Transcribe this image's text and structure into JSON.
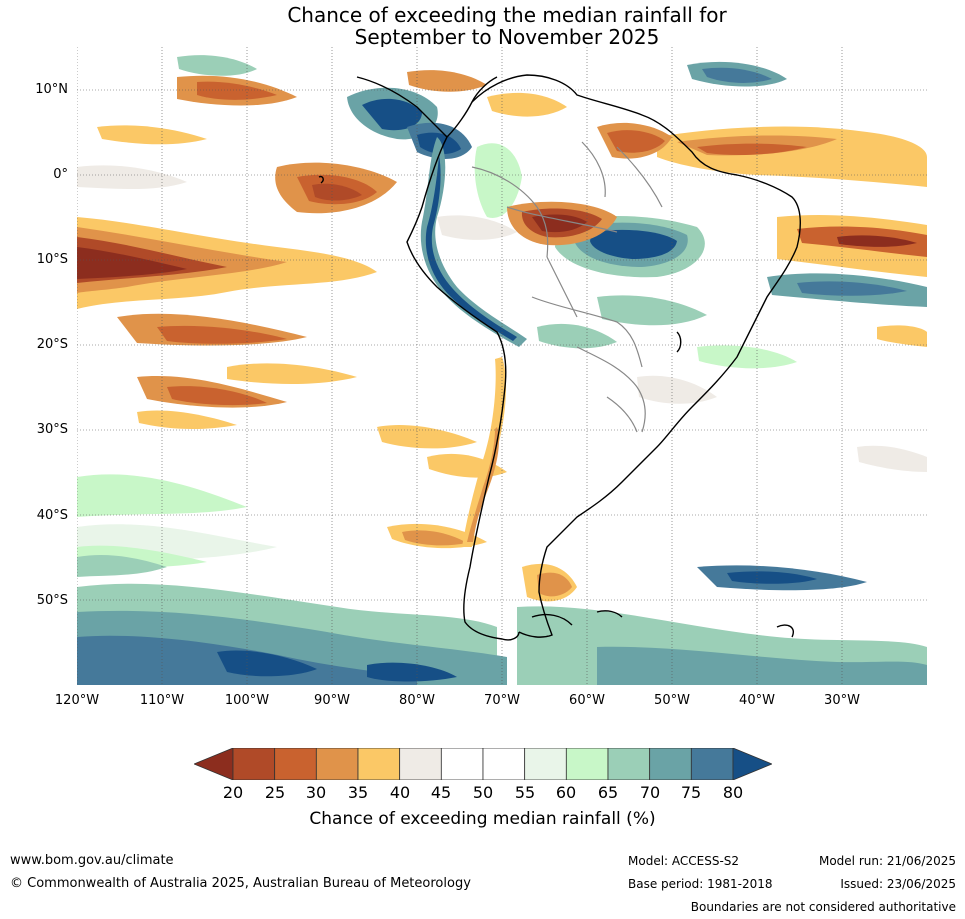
{
  "title": {
    "line1": "Chance of exceeding the median rainfall for",
    "line2": "September to November 2025"
  },
  "map": {
    "region": "South America",
    "lat_labels": [
      "10°N",
      "0°",
      "10°S",
      "20°S",
      "30°S",
      "40°S",
      "50°S"
    ],
    "lon_labels": [
      "120°W",
      "110°W",
      "100°W",
      "90°W",
      "80°W",
      "70°W",
      "60°W",
      "50°W",
      "40°W",
      "30°W"
    ]
  },
  "legend": {
    "ticks": [
      "20",
      "25",
      "30",
      "35",
      "40",
      "45",
      "50",
      "55",
      "60",
      "65",
      "70",
      "75",
      "80"
    ],
    "colors": [
      "#8c2d1e",
      "#b04a28",
      "#c9622f",
      "#e0934a",
      "#fbc866",
      "#efebe6",
      "#ffffff",
      "#ffffff",
      "#e9f5e9",
      "#c8f7c8",
      "#9bcfb7",
      "#6aa3a6",
      "#45799a",
      "#164f86"
    ],
    "label": "Chance of exceeding median rainfall (%)"
  },
  "footer": {
    "website": "www.bom.gov.au/climate",
    "copyright": "© Commonwealth of Australia 2025, Australian Bureau of Meteorology",
    "model": "Model: ACCESS-S2",
    "base_period": "Base period: 1981-2018",
    "model_run": "Model run: 21/06/2025",
    "issued": "Issued: 23/06/2025",
    "disclaimer": "Boundaries are not considered authoritative"
  }
}
